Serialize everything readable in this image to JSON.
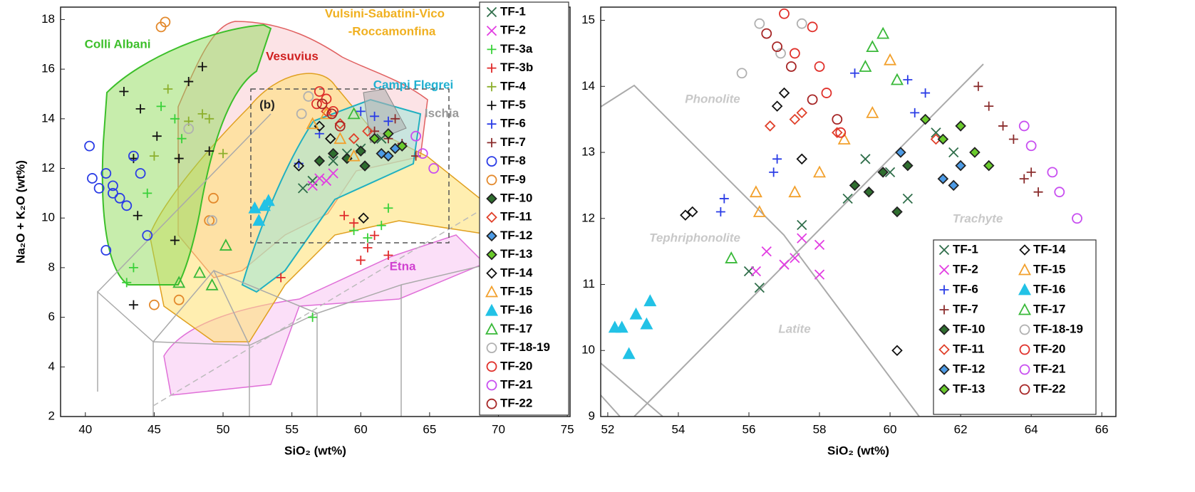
{
  "chart_data": [
    {
      "type": "scatter",
      "x_label": "SiO₂ (wt%)",
      "y_label": "Na₂O + K₂O (wt%)",
      "xlim": [
        38.2,
        75.2
      ],
      "ylim": [
        2,
        18.5
      ],
      "xticks": [
        40,
        45,
        50,
        55,
        60,
        65,
        70,
        75
      ],
      "yticks": [
        2,
        4,
        6,
        8,
        10,
        12,
        14,
        16,
        18
      ],
      "annotations": [
        "Colli Albani",
        "Vesuvius",
        "Vulsini-Sabatini-Vico",
        "-Roccamonfina",
        "Campi Flegrei",
        "Ischia",
        "Etna",
        "(b)"
      ],
      "legend": "upper right",
      "series": [
        {
          "name": "TF-1",
          "color": "#2f6e4a",
          "marker": "x",
          "filled": false,
          "x": [
            55.8,
            56.5,
            58,
            59,
            60,
            61.5
          ],
          "y": [
            11.2,
            11.5,
            12.3,
            12.6,
            12.8,
            13.2
          ]
        },
        {
          "name": "TF-2",
          "color": "#e23de2",
          "marker": "x",
          "filled": false,
          "x": [
            56.5,
            57,
            57.5,
            58
          ],
          "y": [
            11.3,
            11.6,
            11.5,
            11.8
          ]
        },
        {
          "name": "TF-3a",
          "color": "#39d139",
          "marker": "plus",
          "filled": false,
          "x": [
            43.5,
            44.5,
            45.5,
            46.5,
            47,
            59.5,
            60.5,
            61.5,
            62,
            56.5,
            43
          ],
          "y": [
            8,
            11,
            14.5,
            14,
            13.2,
            9.5,
            9.2,
            9.7,
            10.4,
            6,
            7.4
          ]
        },
        {
          "name": "TF-3b",
          "color": "#e02a2a",
          "marker": "plus",
          "filled": false,
          "x": [
            58.8,
            59.5,
            60,
            60.5,
            61,
            62,
            54.2
          ],
          "y": [
            10.1,
            9.8,
            8.3,
            8.8,
            9.3,
            8.5,
            7.6
          ]
        },
        {
          "name": "TF-4",
          "color": "#8caf2c",
          "marker": "plus",
          "filled": false,
          "x": [
            45,
            46,
            47.5,
            48.5,
            49,
            50
          ],
          "y": [
            12.5,
            15.2,
            13.9,
            14.2,
            14,
            12.6
          ]
        },
        {
          "name": "TF-5",
          "color": "#111111",
          "marker": "plus",
          "filled": false,
          "x": [
            42.8,
            43.5,
            44,
            43.8,
            45.2,
            46.8,
            47.5,
            48.5,
            49,
            46.5,
            43.5
          ],
          "y": [
            15.1,
            12.4,
            14.4,
            10.1,
            13.3,
            12.4,
            15.5,
            16.1,
            12.7,
            9.1,
            6.5
          ]
        },
        {
          "name": "TF-6",
          "color": "#2a3ce6",
          "marker": "plus",
          "filled": false,
          "x": [
            55.5,
            60,
            61,
            62,
            57
          ],
          "y": [
            12.2,
            14.3,
            14.1,
            13.9,
            13.4
          ]
        },
        {
          "name": "TF-7",
          "color": "#8a2c2c",
          "marker": "plus",
          "filled": false,
          "x": [
            61,
            62,
            63,
            64,
            62.5
          ],
          "y": [
            13.5,
            13.2,
            13,
            12.5,
            14
          ]
        },
        {
          "name": "TF-8",
          "color": "#2a3ce6",
          "marker": "circle",
          "filled": false,
          "x": [
            40.3,
            40.5,
            41,
            41.5,
            42,
            42.5,
            43,
            44,
            44.5,
            41.5,
            42,
            43.5
          ],
          "y": [
            12.9,
            11.6,
            11.2,
            11.8,
            11.3,
            10.8,
            10.5,
            11.8,
            9.3,
            8.7,
            11,
            12.5
          ]
        },
        {
          "name": "TF-9",
          "color": "#e3892c",
          "marker": "circle",
          "filled": false,
          "x": [
            45.5,
            45.8,
            45,
            46.8,
            49,
            49.3
          ],
          "y": [
            17.7,
            17.9,
            6.5,
            6.7,
            9.9,
            10.8
          ]
        },
        {
          "name": "TF-10",
          "color": "#2f6e2f",
          "marker": "diamond",
          "filled": true,
          "x": [
            57,
            58,
            59,
            60,
            60.3
          ],
          "y": [
            12.3,
            12.6,
            12.4,
            12.7,
            12.1
          ]
        },
        {
          "name": "TF-11",
          "color": "#e0402a",
          "marker": "diamond",
          "filled": false,
          "x": [
            57.5,
            58.5,
            59.5,
            60.5
          ],
          "y": [
            14.3,
            13.8,
            13.2,
            13.5
          ]
        },
        {
          "name": "TF-12",
          "color": "#4d9be6",
          "marker": "diamond",
          "filled": true,
          "x": [
            61.5,
            62,
            62.5
          ],
          "y": [
            12.6,
            12.5,
            12.8
          ]
        },
        {
          "name": "TF-13",
          "color": "#6acb2c",
          "marker": "diamond",
          "filled": true,
          "x": [
            61,
            62,
            63
          ],
          "y": [
            13.2,
            13.4,
            12.9
          ]
        },
        {
          "name": "TF-14",
          "color": "#111111",
          "marker": "diamond",
          "filled": false,
          "x": [
            55.5,
            57,
            57.8,
            60.2
          ],
          "y": [
            12.1,
            13.7,
            13.2,
            10
          ]
        },
        {
          "name": "TF-15",
          "color": "#f2a02c",
          "marker": "triangle",
          "filled": false,
          "x": [
            56.5,
            57.5,
            58.5,
            59.5
          ],
          "y": [
            13.8,
            14.2,
            13.2,
            12.5
          ]
        },
        {
          "name": "TF-16",
          "color": "#22c2e6",
          "marker": "triangle",
          "filled": true,
          "x": [
            52.3,
            52.6,
            53,
            53.3
          ],
          "y": [
            10.4,
            9.9,
            10.5,
            10.7
          ]
        },
        {
          "name": "TF-17",
          "color": "#39b939",
          "marker": "triangle",
          "filled": false,
          "x": [
            46.8,
            48.3,
            49.2,
            50.2,
            59.5
          ],
          "y": [
            7.4,
            7.8,
            7.3,
            8.9,
            14.2
          ]
        },
        {
          "name": "TF-18-19",
          "color": "#b0b0b0",
          "marker": "circle",
          "filled": false,
          "x": [
            49.2,
            55.7,
            56.2,
            47.5
          ],
          "y": [
            9.9,
            14.2,
            14.9,
            13.6
          ]
        },
        {
          "name": "TF-20",
          "color": "#e0302a",
          "marker": "circle",
          "filled": false,
          "x": [
            57,
            57.5,
            58,
            56.8
          ],
          "y": [
            15.1,
            14.8,
            14.3,
            14.6
          ]
        },
        {
          "name": "TF-21",
          "color": "#c84ef0",
          "marker": "circle",
          "filled": false,
          "x": [
            64,
            64.5,
            65.3
          ],
          "y": [
            13.3,
            12.6,
            12
          ]
        },
        {
          "name": "TF-22",
          "color": "#a62424",
          "marker": "circle",
          "filled": false,
          "x": [
            57.2,
            57.9,
            58.5
          ],
          "y": [
            14.6,
            14.2,
            13.7
          ]
        }
      ]
    },
    {
      "type": "scatter",
      "x_label": "SiO₂ (wt%)",
      "xlim": [
        51.8,
        66.4
      ],
      "ylim": [
        9,
        15.2
      ],
      "xticks": [
        52,
        54,
        56,
        58,
        60,
        62,
        64,
        66
      ],
      "yticks": [
        9,
        10,
        11,
        12,
        13,
        14,
        15
      ],
      "annotations": [
        "Phonolite",
        "Tephriphonolite",
        "Latite",
        "Trachyte"
      ],
      "legend": "lower right",
      "series": [
        {
          "name": "TF-1",
          "color": "#2f6e4a",
          "marker": "x",
          "filled": false,
          "x": [
            56,
            56.3,
            57.5,
            58.8,
            59.3,
            60,
            60.5,
            61.3,
            61.8
          ],
          "y": [
            11.2,
            10.95,
            11.9,
            12.3,
            12.9,
            12.7,
            12.3,
            13.3,
            13
          ]
        },
        {
          "name": "TF-2",
          "color": "#e23de2",
          "marker": "x",
          "filled": false,
          "x": [
            56.2,
            56.5,
            57,
            57.3,
            57.5,
            58,
            58
          ],
          "y": [
            11.2,
            11.5,
            11.3,
            11.4,
            11.7,
            11.6,
            11.15
          ]
        },
        {
          "name": "TF-6",
          "color": "#2a3ce6",
          "marker": "plus",
          "filled": false,
          "x": [
            55.2,
            55.3,
            56.7,
            56.8,
            59,
            60.5,
            60.7,
            61
          ],
          "y": [
            12.1,
            12.3,
            12.7,
            12.9,
            14.2,
            14.1,
            13.6,
            13.9
          ]
        },
        {
          "name": "TF-7",
          "color": "#8a2c2c",
          "marker": "plus",
          "filled": false,
          "x": [
            62.5,
            62.8,
            63.2,
            63.5,
            64,
            64.2,
            63.8
          ],
          "y": [
            14,
            13.7,
            13.4,
            13.2,
            12.7,
            12.4,
            12.6
          ]
        },
        {
          "name": "TF-10",
          "color": "#2f6e2f",
          "marker": "diamond",
          "filled": true,
          "x": [
            59,
            59.4,
            59.8,
            60.2,
            60.5
          ],
          "y": [
            12.5,
            12.4,
            12.7,
            12.1,
            12.8
          ]
        },
        {
          "name": "TF-11",
          "color": "#e0402a",
          "marker": "diamond",
          "filled": false,
          "x": [
            56.6,
            57.3,
            57.5,
            58.5,
            61.3
          ],
          "y": [
            13.4,
            13.5,
            13.6,
            13.3,
            13.2
          ]
        },
        {
          "name": "TF-12",
          "color": "#4d9be6",
          "marker": "diamond",
          "filled": true,
          "x": [
            61.5,
            61.8,
            62,
            60.3
          ],
          "y": [
            12.6,
            12.5,
            12.8,
            13
          ]
        },
        {
          "name": "TF-13",
          "color": "#6acb2c",
          "marker": "diamond",
          "filled": true,
          "x": [
            61,
            61.5,
            62,
            62.4,
            62.8
          ],
          "y": [
            13.5,
            13.2,
            13.4,
            13,
            12.8
          ]
        },
        {
          "name": "TF-14",
          "color": "#111111",
          "marker": "diamond",
          "filled": false,
          "x": [
            54.2,
            54.4,
            56.8,
            57,
            57.5,
            60.2
          ],
          "y": [
            12.05,
            12.1,
            13.7,
            13.9,
            12.9,
            10
          ]
        },
        {
          "name": "TF-15",
          "color": "#f2a02c",
          "marker": "triangle",
          "filled": false,
          "x": [
            56.2,
            56.3,
            57.3,
            58,
            58.7,
            59.5,
            60
          ],
          "y": [
            12.4,
            12.1,
            12.4,
            12.7,
            13.2,
            13.6,
            14.4
          ]
        },
        {
          "name": "TF-16",
          "color": "#22c2e6",
          "marker": "triangle",
          "filled": true,
          "x": [
            52.2,
            52.4,
            52.6,
            52.8,
            53.1,
            53.2
          ],
          "y": [
            10.35,
            10.35,
            9.95,
            10.55,
            10.4,
            10.75
          ]
        },
        {
          "name": "TF-17",
          "color": "#39b939",
          "marker": "triangle",
          "filled": false,
          "x": [
            55.5,
            59.3,
            59.5,
            59.8,
            60.2
          ],
          "y": [
            11.4,
            14.3,
            14.6,
            14.8,
            14.1
          ]
        },
        {
          "name": "TF-18-19",
          "color": "#b0b0b0",
          "marker": "circle",
          "filled": false,
          "x": [
            55.8,
            56.3,
            56.9,
            57.5
          ],
          "y": [
            14.2,
            14.95,
            14.5,
            14.95
          ]
        },
        {
          "name": "TF-20",
          "color": "#e0302a",
          "marker": "circle",
          "filled": false,
          "x": [
            57,
            57.3,
            57.8,
            58,
            58.2,
            58.6
          ],
          "y": [
            15.1,
            14.5,
            14.9,
            14.3,
            13.9,
            13.3
          ]
        },
        {
          "name": "TF-21",
          "color": "#c84ef0",
          "marker": "circle",
          "filled": false,
          "x": [
            63.8,
            64,
            64.6,
            64.8,
            65.3
          ],
          "y": [
            13.4,
            13.1,
            12.7,
            12.4,
            12
          ]
        },
        {
          "name": "TF-22",
          "color": "#a62424",
          "marker": "circle",
          "filled": false,
          "x": [
            56.5,
            56.8,
            57.2,
            57.8,
            58.5
          ],
          "y": [
            14.8,
            14.6,
            14.3,
            13.8,
            13.5
          ]
        }
      ]
    }
  ]
}
